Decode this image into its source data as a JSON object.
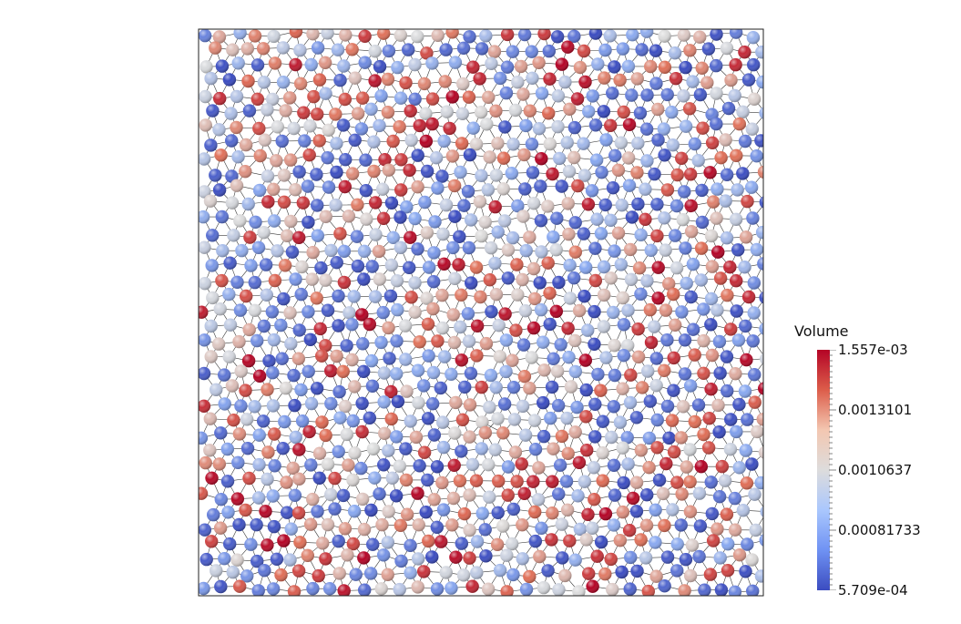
{
  "scene": {
    "description_type": "particle-volume-render",
    "seed": 20240917
  },
  "colorbar": {
    "title": "Volume",
    "labels": [
      "1.557e-03",
      "0.0013101",
      "0.0010637",
      "0.00081733",
      "5.709e-04"
    ],
    "min": 0.0005709,
    "max": 0.001557,
    "colors": {
      "high": "#b40426",
      "midhigh": "#e07058",
      "mid": "#dcdcdc",
      "midlow": "#88a8f0",
      "low": "#3b4cc0"
    }
  }
}
